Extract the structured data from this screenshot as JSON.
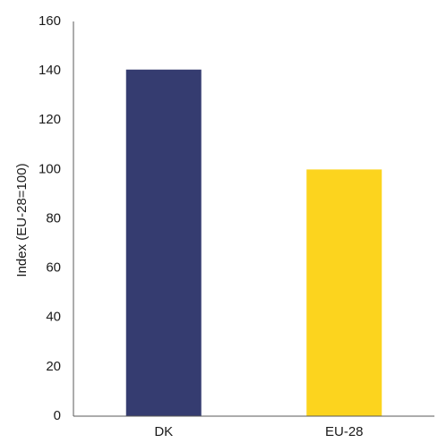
{
  "chart_data": {
    "type": "bar",
    "categories": [
      "DK",
      "EU-28"
    ],
    "values": [
      140.5,
      100
    ],
    "colors": [
      "#353c70",
      "#fcd41e"
    ],
    "title": "",
    "xlabel": "",
    "ylabel": "Index (EU-28=100)",
    "ylim": [
      0,
      160
    ],
    "yticks": [
      0,
      20,
      40,
      60,
      80,
      100,
      120,
      140,
      160
    ],
    "grid": false,
    "legend": "none"
  }
}
